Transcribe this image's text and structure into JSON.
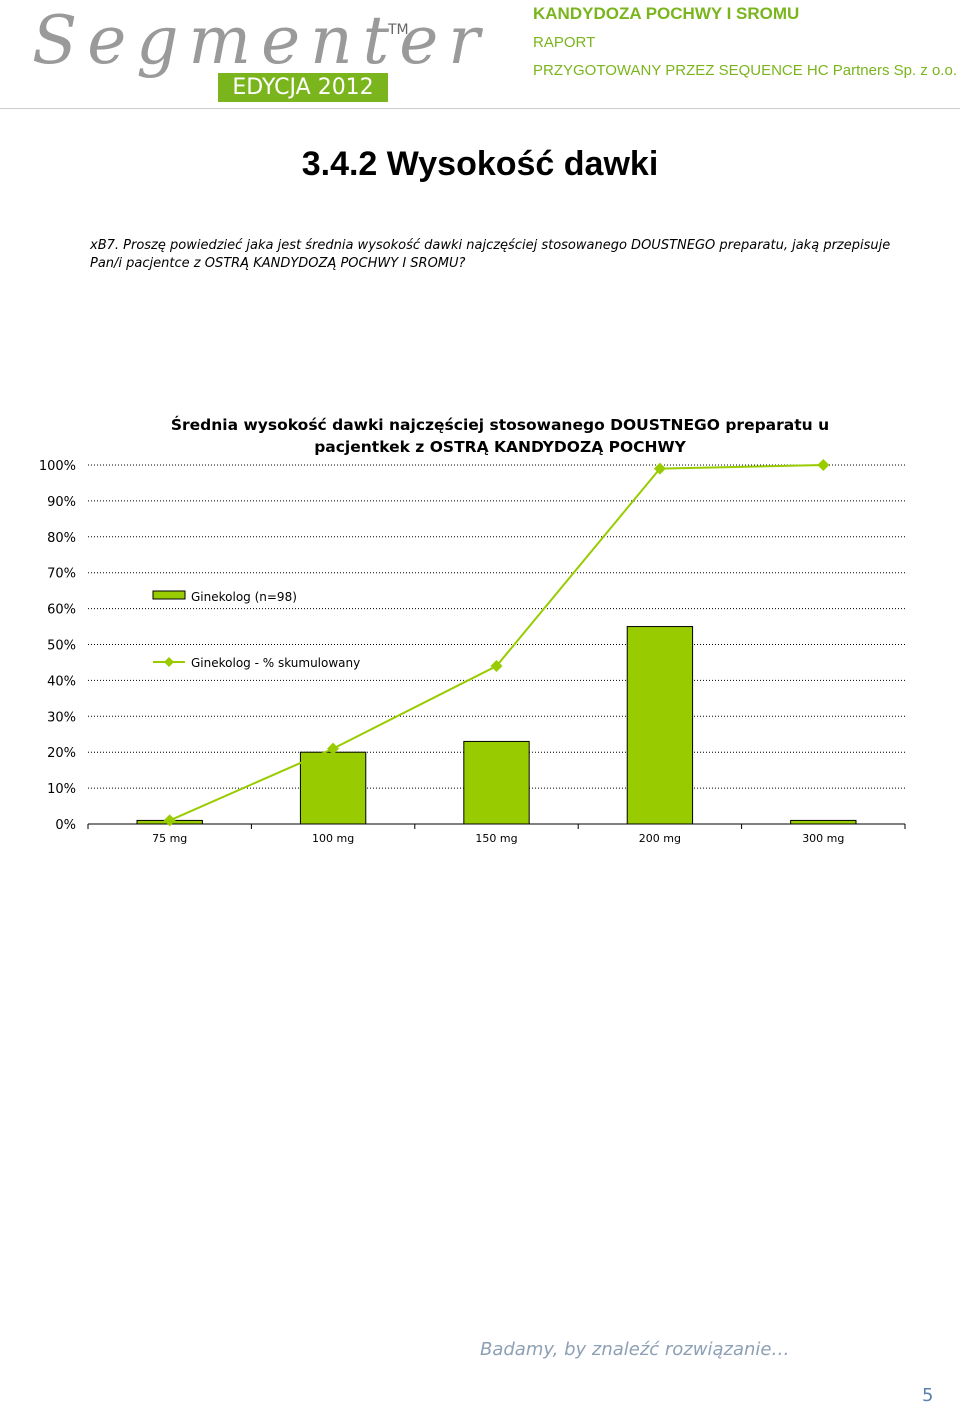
{
  "header": {
    "logo": "Segmenter",
    "trademark": "TM",
    "edition": "EDYCJA 2012",
    "report_title": "KANDYDOZA POCHWY I SROMU",
    "report_type": "RAPORT",
    "prepared_by": "PRZYGOTOWANY PRZEZ SEQUENCE HC Partners Sp. z o.o."
  },
  "section_title": "3.4.2 Wysokość dawki",
  "question": "xB7. Proszę powiedzieć jaka jest średnia wysokość dawki najczęściej stosowanego DOUSTNEGO preparatu, jaką przepisuje Pan/i pacjentce z OSTRĄ KANDYDOZĄ POCHWY I SROMU?",
  "chart_data": {
    "type": "bar",
    "title": "Średnia wysokość dawki najczęściej stosowanego DOUSTNEGO preparatu u pacjentkek z OSTRĄ KANDYDOZĄ POCHWY",
    "categories": [
      "75 mg",
      "100 mg",
      "150 mg",
      "200 mg",
      "300 mg"
    ],
    "series": [
      {
        "name": "Ginekolog (n=98)",
        "type": "bar",
        "color": "#99cc00",
        "values": [
          1,
          20,
          23,
          55,
          1
        ]
      },
      {
        "name": "Ginekolog - % skumulowany",
        "type": "line",
        "color": "#99cc00",
        "values": [
          1,
          21,
          44,
          99,
          100
        ]
      }
    ],
    "ylim": [
      0,
      100
    ],
    "yticks": [
      {
        "value": 0,
        "label": "0%"
      },
      {
        "value": 10,
        "label": "10%"
      },
      {
        "value": 20,
        "label": "20%"
      },
      {
        "value": 30,
        "label": "30%"
      },
      {
        "value": 40,
        "label": "40%"
      },
      {
        "value": 50,
        "label": "50%"
      },
      {
        "value": 60,
        "label": "60%"
      },
      {
        "value": 70,
        "label": "70%"
      },
      {
        "value": 80,
        "label": "80%"
      },
      {
        "value": 90,
        "label": "90%"
      },
      {
        "value": 100,
        "label": "100%"
      }
    ],
    "grid": true
  },
  "footer": {
    "slogan": "Badamy, by znaleźć rozwiązanie…",
    "page_number": "5"
  }
}
